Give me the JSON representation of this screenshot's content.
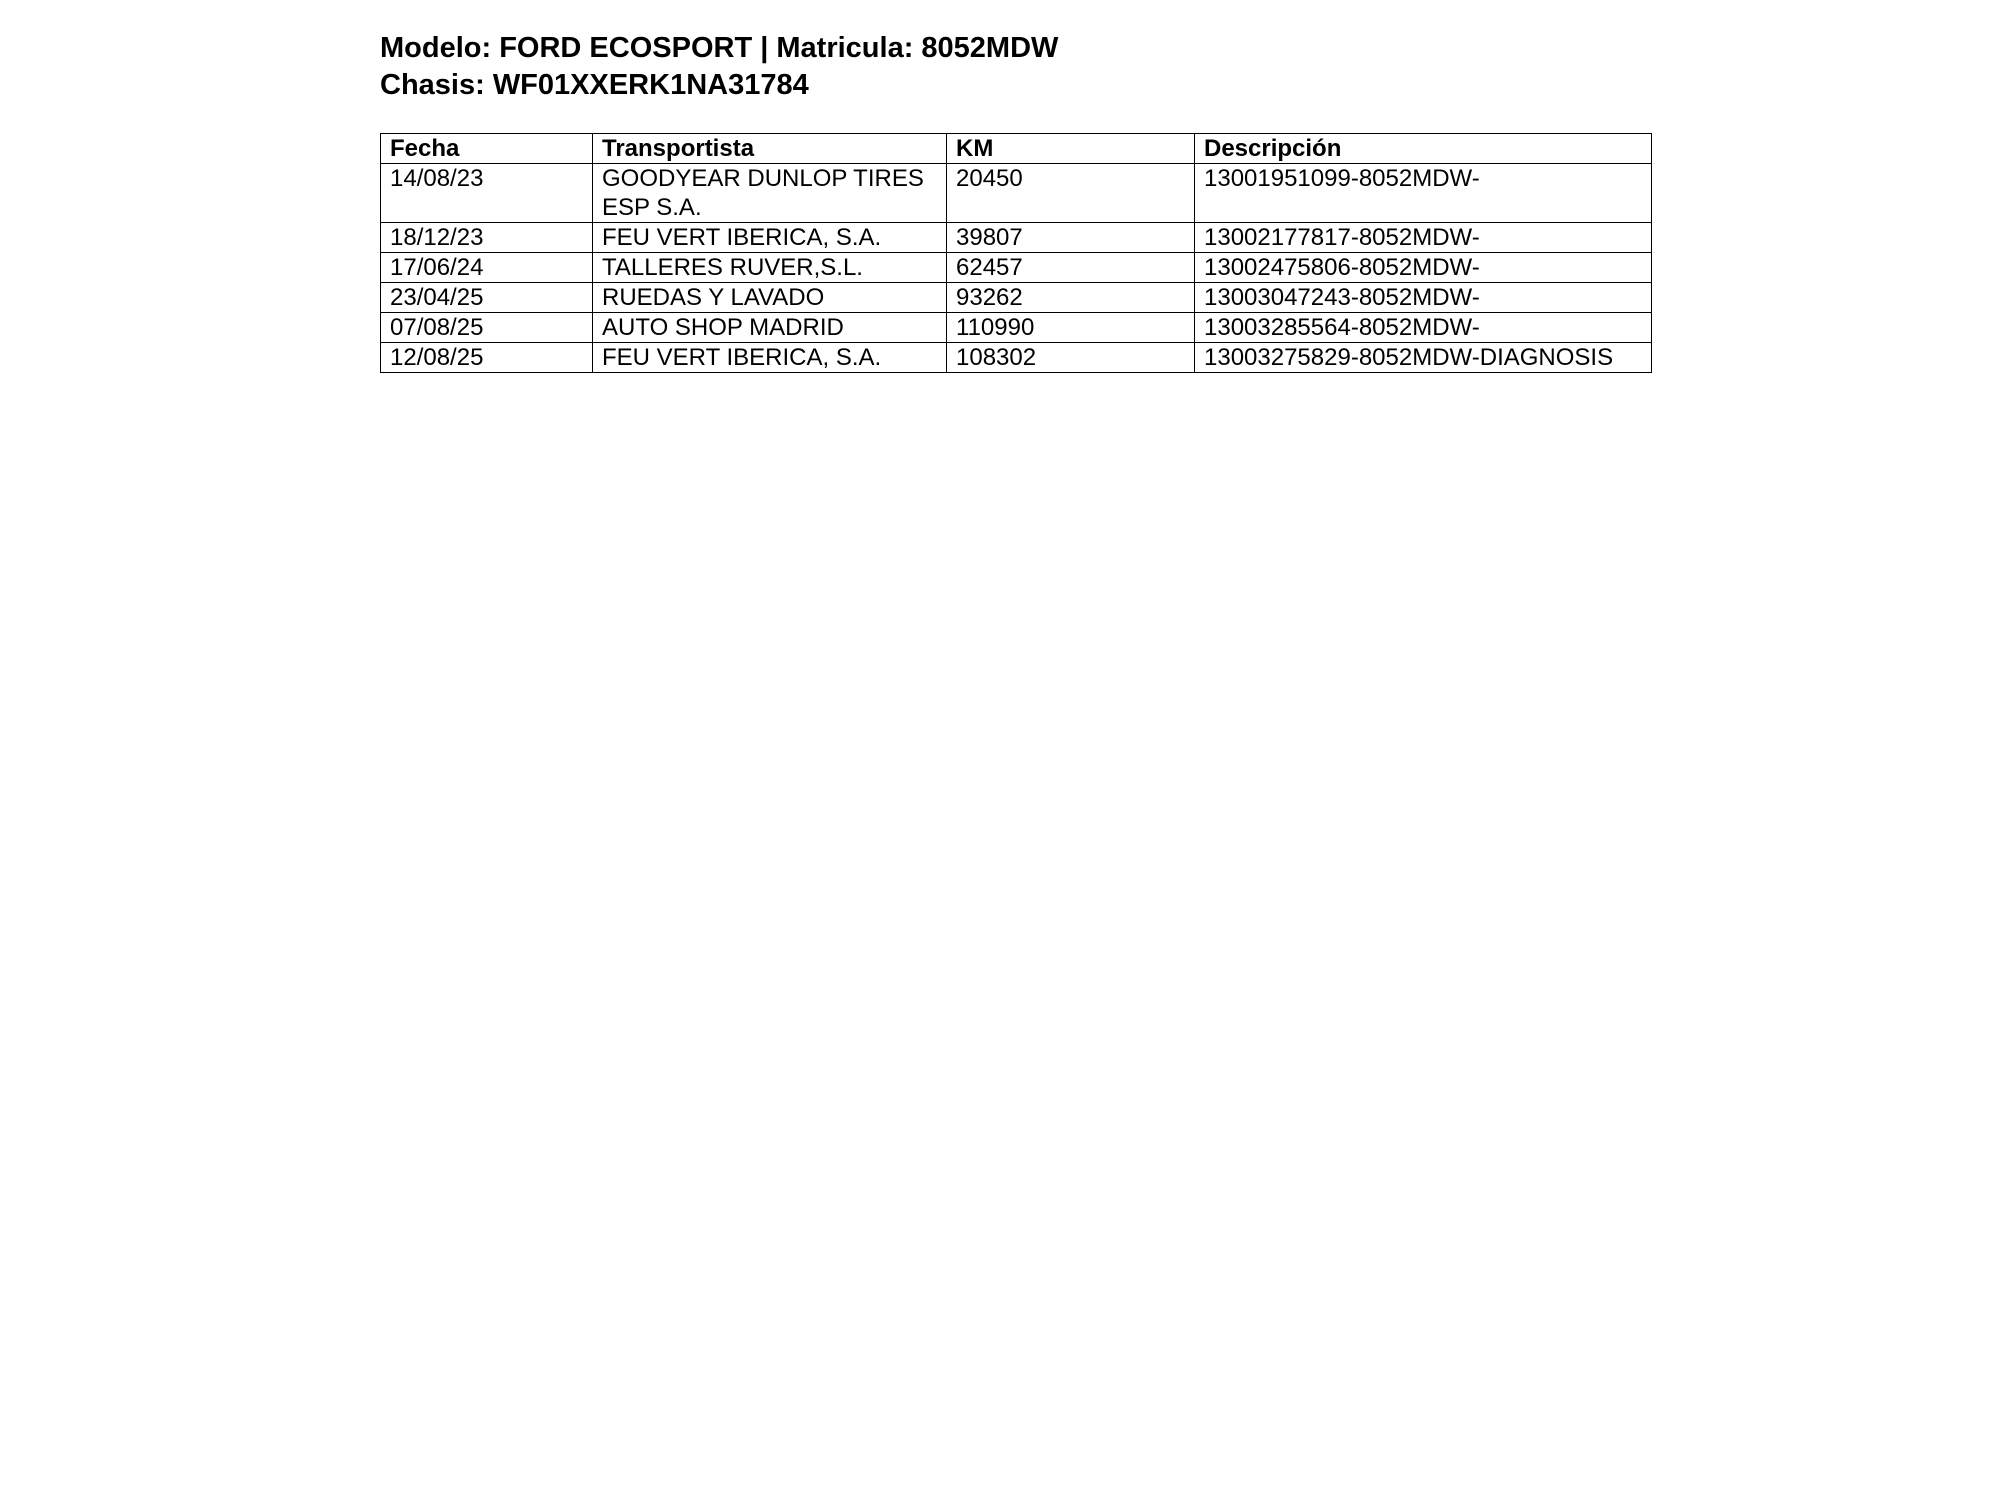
{
  "header": {
    "line1": "Modelo: FORD ECOSPORT | Matricula: 8052MDW",
    "line2": "Chasis: WF01XXERK1NA31784"
  },
  "table": {
    "columns": [
      "Fecha",
      "Transportista",
      "KM",
      "Descripción"
    ],
    "rows": [
      [
        "14/08/23",
        "GOODYEAR DUNLOP TIRES ESP S.A.",
        "20450",
        "13001951099-8052MDW-"
      ],
      [
        "18/12/23",
        "FEU VERT IBERICA, S.A.",
        "39807",
        "13002177817-8052MDW-"
      ],
      [
        "17/06/24",
        "TALLERES RUVER,S.L.",
        "62457",
        "13002475806-8052MDW-"
      ],
      [
        "23/04/25",
        "RUEDAS Y LAVADO",
        "93262",
        "13003047243-8052MDW-"
      ],
      [
        "07/08/25",
        "AUTO SHOP MADRID",
        "110990",
        "13003285564-8052MDW-"
      ],
      [
        "12/08/25",
        "FEU VERT IBERICA, S.A.",
        "108302",
        "13003275829-8052MDW-DIAGNOSIS"
      ]
    ]
  }
}
